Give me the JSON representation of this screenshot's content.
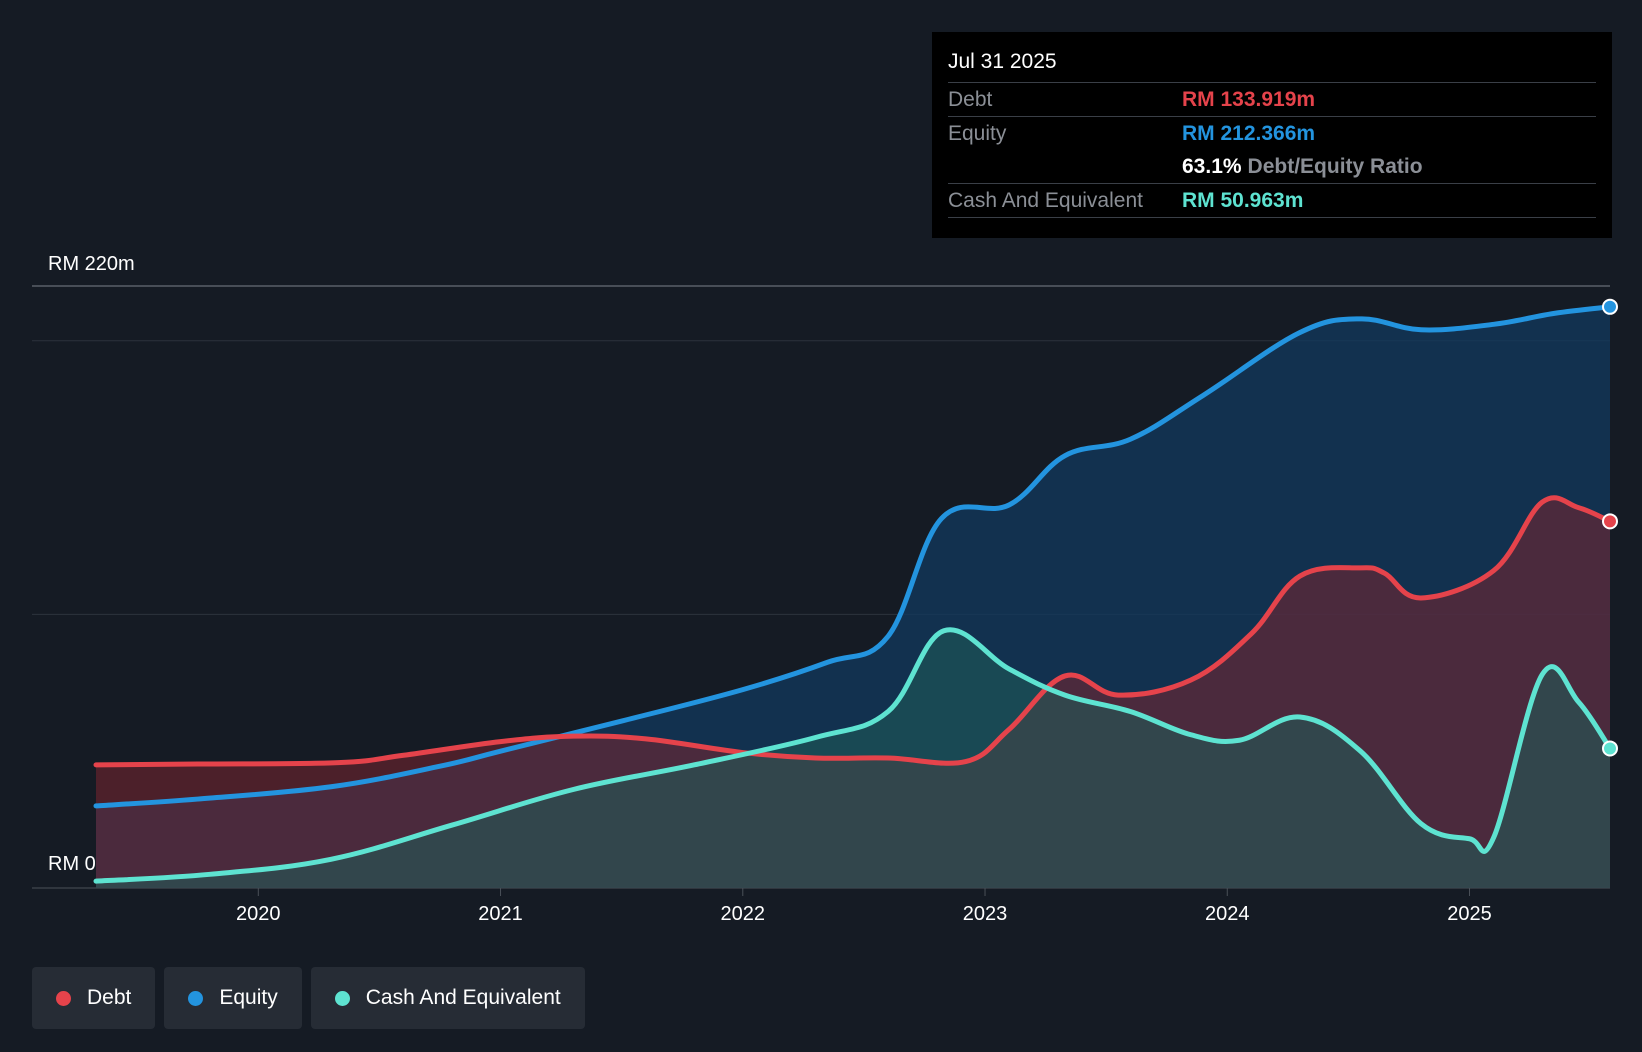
{
  "chart_data": {
    "type": "area",
    "currency_prefix": "RM",
    "y_top_label": "RM 220m",
    "y_bottom_label": "RM 0",
    "ylim": [
      0,
      220
    ],
    "xlim": [
      2019.33,
      2025.58
    ],
    "x_ticks": [
      {
        "value": 2020,
        "label": "2020"
      },
      {
        "value": 2021,
        "label": "2021"
      },
      {
        "value": 2022,
        "label": "2022"
      },
      {
        "value": 2023,
        "label": "2023"
      },
      {
        "value": 2024,
        "label": "2024"
      },
      {
        "value": 2025,
        "label": "2025"
      }
    ],
    "gridlines_y": [
      0,
      100,
      200,
      220
    ],
    "series": [
      {
        "name": "Debt",
        "key": "debt",
        "color": "#e5434b",
        "fill": "#7a2530",
        "points": [
          [
            2019.33,
            45
          ],
          [
            2019.75,
            45.3
          ],
          [
            2020.33,
            45.8
          ],
          [
            2020.6,
            48.5
          ],
          [
            2021.0,
            53.5
          ],
          [
            2021.3,
            55.5
          ],
          [
            2021.6,
            54.5
          ],
          [
            2022.0,
            49.5
          ],
          [
            2022.3,
            47.5
          ],
          [
            2022.6,
            47.5
          ],
          [
            2022.92,
            46.2
          ],
          [
            2023.1,
            58
          ],
          [
            2023.33,
            77.5
          ],
          [
            2023.55,
            70.5
          ],
          [
            2023.85,
            76
          ],
          [
            2024.1,
            93
          ],
          [
            2024.3,
            114
          ],
          [
            2024.55,
            117
          ],
          [
            2024.65,
            115
          ],
          [
            2024.8,
            106
          ],
          [
            2025.1,
            116
          ],
          [
            2025.3,
            141
          ],
          [
            2025.45,
            139
          ],
          [
            2025.58,
            134
          ]
        ]
      },
      {
        "name": "Equity",
        "key": "equity",
        "color": "#2394df",
        "fill": "#123a5e",
        "points": [
          [
            2019.33,
            30
          ],
          [
            2019.75,
            32.5
          ],
          [
            2020.3,
            37
          ],
          [
            2020.75,
            44.5
          ],
          [
            2021.0,
            50
          ],
          [
            2021.5,
            61
          ],
          [
            2022.0,
            72.5
          ],
          [
            2022.35,
            82.5
          ],
          [
            2022.6,
            92
          ],
          [
            2022.82,
            135
          ],
          [
            2023.1,
            140
          ],
          [
            2023.33,
            158
          ],
          [
            2023.6,
            164
          ],
          [
            2023.9,
            180
          ],
          [
            2024.3,
            203
          ],
          [
            2024.55,
            208
          ],
          [
            2024.8,
            204
          ],
          [
            2025.1,
            206
          ],
          [
            2025.35,
            210
          ],
          [
            2025.58,
            212.4
          ]
        ]
      },
      {
        "name": "Cash And Equivalent",
        "key": "cash",
        "color": "#5ee3d1",
        "fill": "#1f5c5a",
        "points": [
          [
            2019.33,
            2.5
          ],
          [
            2019.8,
            5
          ],
          [
            2020.3,
            10.5
          ],
          [
            2020.8,
            23
          ],
          [
            2021.3,
            36
          ],
          [
            2021.8,
            45
          ],
          [
            2022.3,
            55
          ],
          [
            2022.6,
            64.5
          ],
          [
            2022.83,
            94
          ],
          [
            2023.1,
            80
          ],
          [
            2023.33,
            70.5
          ],
          [
            2023.6,
            64.5
          ],
          [
            2023.85,
            56
          ],
          [
            2024.05,
            54
          ],
          [
            2024.3,
            62.5
          ],
          [
            2024.55,
            50
          ],
          [
            2024.8,
            23.5
          ],
          [
            2025.0,
            18
          ],
          [
            2025.1,
            18.5
          ],
          [
            2025.3,
            78
          ],
          [
            2025.45,
            68
          ],
          [
            2025.58,
            51
          ]
        ]
      }
    ]
  },
  "tooltip": {
    "date": "Jul 31 2025",
    "debt_label": "Debt",
    "debt_value": "RM 133.919m",
    "equity_label": "Equity",
    "equity_value": "RM 212.366m",
    "ratio_value": "63.1%",
    "ratio_label": "Debt/Equity Ratio",
    "cash_label": "Cash And Equivalent",
    "cash_value": "RM 50.963m"
  },
  "legend": {
    "items": [
      {
        "label": "Debt",
        "color": "#e5434b"
      },
      {
        "label": "Equity",
        "color": "#2394df"
      },
      {
        "label": "Cash And Equivalent",
        "color": "#5ee3d1"
      }
    ]
  }
}
